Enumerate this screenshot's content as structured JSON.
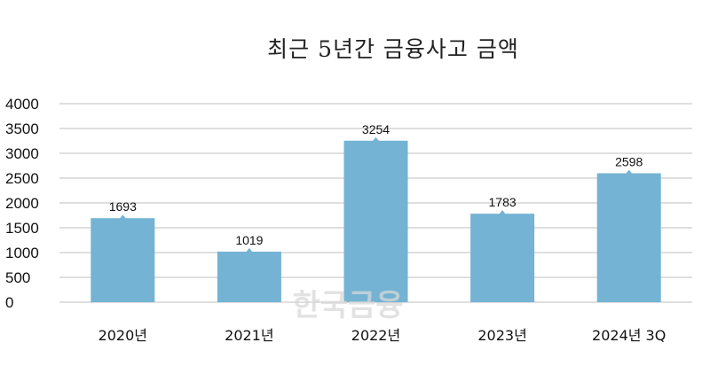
{
  "chart_data": {
    "type": "bar",
    "title": "최근 5년간 금융사고 금액",
    "categories": [
      "2020년",
      "2021년",
      "2022년",
      "2023년",
      "2024년 3Q"
    ],
    "values": [
      1693,
      1019,
      3254,
      1783,
      2598
    ],
    "data_labels": [
      "1693",
      "1019",
      "3254",
      "1783",
      "2598"
    ],
    "ylim": [
      0,
      4000
    ],
    "yticks": [
      0,
      500,
      1000,
      1500,
      2000,
      2500,
      3000,
      3500,
      4000
    ],
    "xlabel": "",
    "ylabel": "",
    "grid": true,
    "bar_color": "#74b3d3",
    "grid_color": "#bfbfbf"
  },
  "watermark": "한국금융"
}
